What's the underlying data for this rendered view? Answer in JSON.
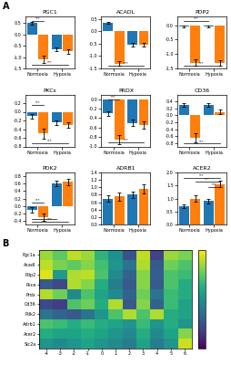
{
  "chart_data": [
    {
      "type": "bar",
      "panel": "A",
      "title": "PGC1",
      "categories": [
        "Normoxia",
        "Hypoxia"
      ],
      "series": [
        {
          "values": [
            0.5,
            -0.65
          ],
          "errors": [
            0.05,
            0.08
          ]
        },
        {
          "values": [
            -1.1,
            -0.75
          ],
          "errors": [
            0.15,
            0.1
          ]
        }
      ],
      "ylim": [
        -1.5,
        0.8
      ],
      "yticks": [
        -1.5,
        {
          "value": -1.0,
          "label": "-1.0"
        },
        -0.5,
        {
          "value": 0.0,
          "label": "0.0"
        },
        0.5
      ],
      "annotations": [
        {
          "text": "***",
          "y": -1.35,
          "from": 0,
          "to": 3
        },
        {
          "text": "***",
          "y": 0.6,
          "from": 0,
          "to": 1
        }
      ]
    },
    {
      "type": "bar",
      "panel": "A",
      "title": "ACADL",
      "categories": [
        "Normoxia",
        "Hypoxia"
      ],
      "series": [
        {
          "values": [
            0.35,
            -0.55
          ],
          "errors": [
            0.04,
            0.07
          ]
        },
        {
          "values": [
            -1.3,
            -0.55
          ],
          "errors": [
            0.1,
            0.08
          ]
        }
      ],
      "ylim": [
        -1.5,
        0.6
      ],
      "yticks": [
        -1.5,
        {
          "value": -1.0,
          "label": "-1.0"
        },
        -0.5,
        {
          "value": 0.0,
          "label": "0.0"
        },
        0.5
      ],
      "annotations": [
        {
          "text": "***",
          "y": -1.4,
          "from": 0,
          "to": 3
        }
      ]
    },
    {
      "type": "bar",
      "panel": "A",
      "title": "PDP2",
      "categories": [
        "Normoxia",
        "Hypoxia"
      ],
      "series": [
        {
          "values": [
            -0.05,
            -0.05
          ],
          "errors": [
            0.03,
            0.04
          ]
        },
        {
          "values": [
            -1.3,
            -1.3
          ],
          "errors": [
            0.12,
            0.1
          ]
        }
      ],
      "ylim": [
        -1.5,
        0.3
      ],
      "yticks": [
        -1.5,
        {
          "value": -1.0,
          "label": "-1.0"
        },
        -0.5,
        {
          "value": 0.0,
          "label": "0.0"
        }
      ],
      "annotations": [
        {
          "text": "***",
          "y": -1.4,
          "from": 0,
          "to": 3
        },
        {
          "text": "***",
          "y": 0.15,
          "from": 0,
          "to": 2
        }
      ]
    },
    {
      "type": "bar",
      "panel": "A",
      "title": "PKCε",
      "categories": [
        "Normoxia",
        "Hypoxia"
      ],
      "series": [
        {
          "values": [
            -0.1,
            -0.25
          ],
          "errors": [
            0.05,
            0.05
          ]
        },
        {
          "values": [
            -0.5,
            -0.3
          ],
          "errors": [
            0.12,
            0.06
          ]
        }
      ],
      "ylim": [
        -0.8,
        0.4
      ],
      "yticks": [
        -0.8,
        -0.6,
        -0.4,
        -0.2,
        {
          "value": 0.0,
          "label": "0.0"
        },
        0.2
      ],
      "annotations": [
        {
          "text": "***",
          "y": -0.72,
          "from": 0,
          "to": 3
        },
        {
          "text": "***",
          "y": 0.15,
          "from": 0,
          "to": 1
        }
      ]
    },
    {
      "type": "bar",
      "panel": "A",
      "title": "PRDX",
      "categories": [
        "Normoxia",
        "Hypoxia"
      ],
      "series": [
        {
          "values": [
            -0.3,
            -0.5
          ],
          "errors": [
            0.05,
            0.06
          ]
        },
        {
          "values": [
            -0.85,
            -0.55
          ],
          "errors": [
            0.1,
            0.08
          ]
        }
      ],
      "ylim": [
        -1.0,
        0.1
      ],
      "yticks": [
        {
          "value": -1.0,
          "label": "-1.0"
        },
        -0.8,
        -0.6,
        -0.4,
        -0.2,
        {
          "value": 0.0,
          "label": "0.0"
        }
      ],
      "annotations": [
        {
          "text": "***",
          "y": -0.92,
          "from": 0,
          "to": 3
        },
        {
          "text": "***",
          "y": 0.0,
          "from": 0,
          "to": 1
        }
      ]
    },
    {
      "type": "bar",
      "panel": "A",
      "title": "CD36",
      "categories": [
        "Normoxia",
        "Hypoxia"
      ],
      "series": [
        {
          "values": [
            0.3,
            0.3
          ],
          "errors": [
            0.06,
            0.05
          ]
        },
        {
          "values": [
            -0.65,
            0.1
          ],
          "errors": [
            0.12,
            0.07
          ]
        }
      ],
      "ylim": [
        -0.9,
        0.6
      ],
      "yticks": [
        -0.8,
        -0.6,
        -0.4,
        -0.2,
        {
          "value": 0.0,
          "label": "0.0"
        },
        0.2,
        0.4
      ],
      "annotations": [
        {
          "text": "***",
          "y": -0.82,
          "from": 0,
          "to": 3
        }
      ]
    },
    {
      "type": "bar",
      "panel": "A",
      "title": "PDK2",
      "categories": [
        "Normoxia",
        "Hypoxia"
      ],
      "series": [
        {
          "values": [
            -0.1,
            0.6
          ],
          "errors": [
            0.07,
            0.08
          ]
        },
        {
          "values": [
            -0.3,
            0.65
          ],
          "errors": [
            0.1,
            0.09
          ]
        }
      ],
      "ylim": [
        -0.5,
        0.9
      ],
      "yticks": [
        -0.4,
        -0.2,
        {
          "value": 0.0,
          "label": "0.0"
        },
        0.2,
        0.4,
        0.6,
        0.8
      ],
      "annotations": [
        {
          "text": "***",
          "y": -0.42,
          "from": 0,
          "to": 3
        },
        {
          "text": "*",
          "y": -0.35,
          "from": 0,
          "to": 2
        },
        {
          "text": "***",
          "y": 0.08,
          "from": 0,
          "to": 1
        }
      ]
    },
    {
      "type": "bar",
      "panel": "A",
      "title": "ADRB1",
      "categories": [
        "Normoxia",
        "Hypoxia"
      ],
      "series": [
        {
          "values": [
            0.7,
            0.8
          ],
          "errors": [
            0.08,
            0.09
          ]
        },
        {
          "values": [
            0.75,
            0.95
          ],
          "errors": [
            0.1,
            0.12
          ]
        }
      ],
      "ylim": [
        0.0,
        1.4
      ],
      "yticks": [
        {
          "value": 0.0,
          "label": "0.0"
        },
        0.2,
        0.4,
        0.6,
        0.8,
        {
          "value": 1.0,
          "label": "1.0"
        },
        1.2,
        1.4
      ],
      "annotations": []
    },
    {
      "type": "bar",
      "panel": "A",
      "title": "ACER2",
      "categories": [
        "Normoxia",
        "Hypoxia"
      ],
      "series": [
        {
          "values": [
            0.7,
            0.9
          ],
          "errors": [
            0.08,
            0.1
          ]
        },
        {
          "values": [
            1.0,
            1.55
          ],
          "errors": [
            0.12,
            0.12
          ]
        }
      ],
      "ylim": [
        0.0,
        2.0
      ],
      "yticks": [
        {
          "value": 0.0,
          "label": "0.0"
        },
        0.5,
        {
          "value": 1.0,
          "label": "1.0"
        },
        1.5,
        {
          "value": 2.0,
          "label": "2.0"
        }
      ],
      "annotations": [
        {
          "text": "***",
          "y": 1.8,
          "from": 0,
          "to": 3
        },
        {
          "text": "***",
          "y": 1.65,
          "from": 1,
          "to": 3
        },
        {
          "text": "***",
          "y": 1.45,
          "from": 2,
          "to": 3
        }
      ]
    },
    {
      "type": "heatmap",
      "panel": "B",
      "x_categories": [
        "-4",
        "-3",
        "-2",
        "-1",
        "0",
        "1",
        "2",
        "3",
        "4",
        "5",
        "6"
      ],
      "y_categories": [
        "Pgc1a",
        "Acadl",
        "Pdp2",
        "Pkce",
        "Prdx",
        "Cd36",
        "Pdk2",
        "Adrb1",
        "Acer2",
        "Slc2a"
      ],
      "cells": [
        [
          0.85,
          0.75,
          0.9,
          0.85,
          0.65,
          0.5,
          0.25,
          0.9,
          0.2,
          0.85,
          0.8
        ],
        [
          0.9,
          0.8,
          0.75,
          0.82,
          0.7,
          0.52,
          0.38,
          0.88,
          0.28,
          0.78,
          0.72
        ],
        [
          0.95,
          0.55,
          0.88,
          0.9,
          0.72,
          0.48,
          0.32,
          0.82,
          0.3,
          0.72,
          0.68
        ],
        [
          0.28,
          0.22,
          0.88,
          0.82,
          0.62,
          0.42,
          0.28,
          0.82,
          0.28,
          0.72,
          0.62
        ],
        [
          0.88,
          0.78,
          0.48,
          0.72,
          0.58,
          0.48,
          0.32,
          0.78,
          0.38,
          0.68,
          0.62
        ],
        [
          0.22,
          0.18,
          0.72,
          0.78,
          0.62,
          0.88,
          0.28,
          0.82,
          0.32,
          0.68,
          0.58
        ],
        [
          0.38,
          0.32,
          0.28,
          0.38,
          0.52,
          0.72,
          0.88,
          0.72,
          0.88,
          0.62,
          0.58
        ],
        [
          0.72,
          0.68,
          0.62,
          0.68,
          0.62,
          0.58,
          0.52,
          0.68,
          0.52,
          0.62,
          0.52
        ],
        [
          0.62,
          0.58,
          0.58,
          0.62,
          0.58,
          0.52,
          0.48,
          0.62,
          0.48,
          0.58,
          0.82
        ],
        [
          0.52,
          0.48,
          0.52,
          0.58,
          0.52,
          0.48,
          0.42,
          0.58,
          0.42,
          0.52,
          0.92
        ]
      ],
      "color_range": [
        0,
        1
      ]
    }
  ]
}
